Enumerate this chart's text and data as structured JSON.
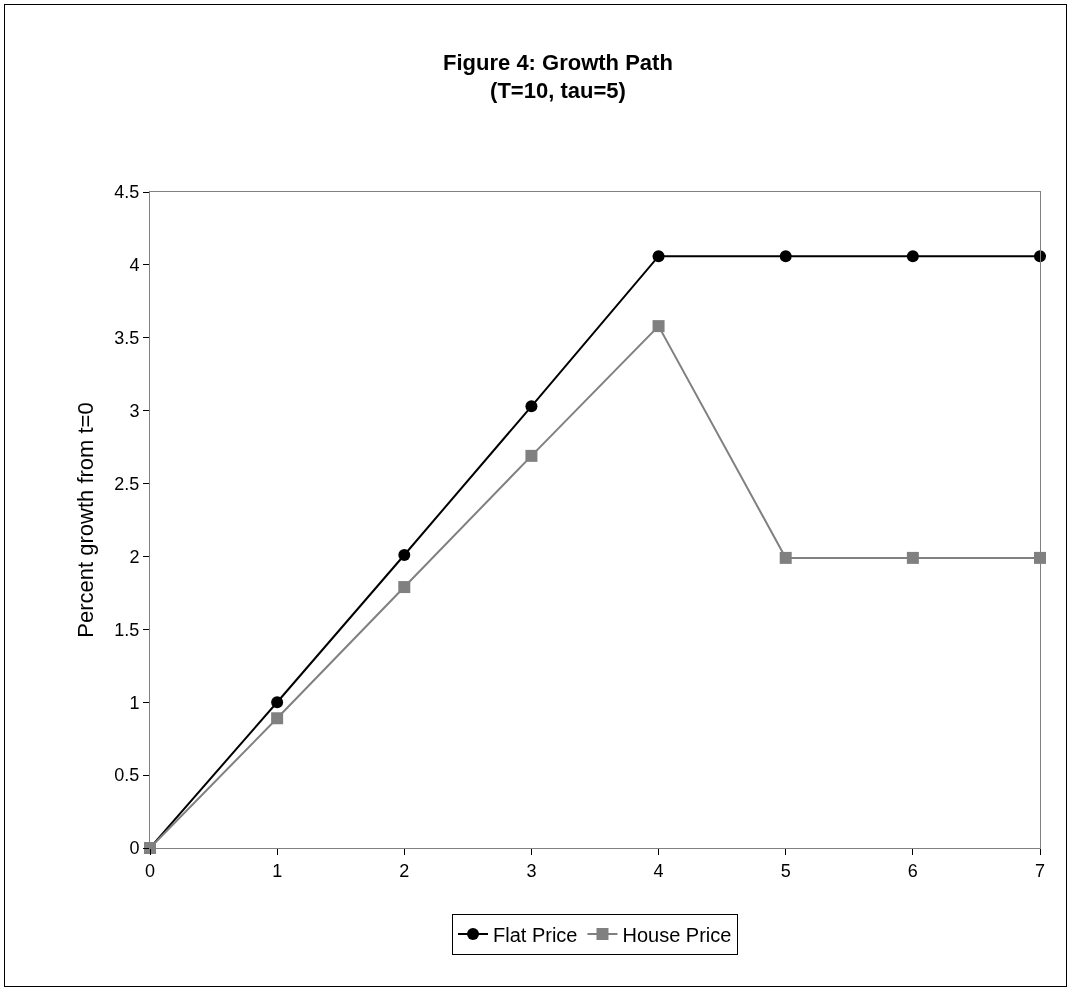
{
  "chart_data": {
    "type": "line",
    "title": "Figure 4: Growth Path\n(T=10, tau=5)",
    "ylabel": "Percent growth from t=0",
    "x": [
      0,
      1,
      2,
      3,
      4,
      5,
      6,
      7
    ],
    "series": [
      {
        "name": "Flat Price",
        "color": "#000000",
        "marker": "circle",
        "values": [
          0,
          1.0,
          2.01,
          3.03,
          4.06,
          4.06,
          4.06,
          4.06
        ]
      },
      {
        "name": "House Price",
        "color": "#808080",
        "marker": "square",
        "values": [
          0,
          0.89,
          1.79,
          2.69,
          3.58,
          1.99,
          1.99,
          1.99
        ]
      }
    ],
    "xlim": [
      0,
      7
    ],
    "xticks": [
      0,
      1,
      2,
      3,
      4,
      5,
      6,
      7
    ],
    "ylim": [
      0,
      4.5
    ],
    "yticks": [
      0,
      0.5,
      1,
      1.5,
      2,
      2.5,
      3,
      3.5,
      4,
      4.5
    ],
    "grid": false,
    "legend": "bottom",
    "line_style": "solid"
  }
}
